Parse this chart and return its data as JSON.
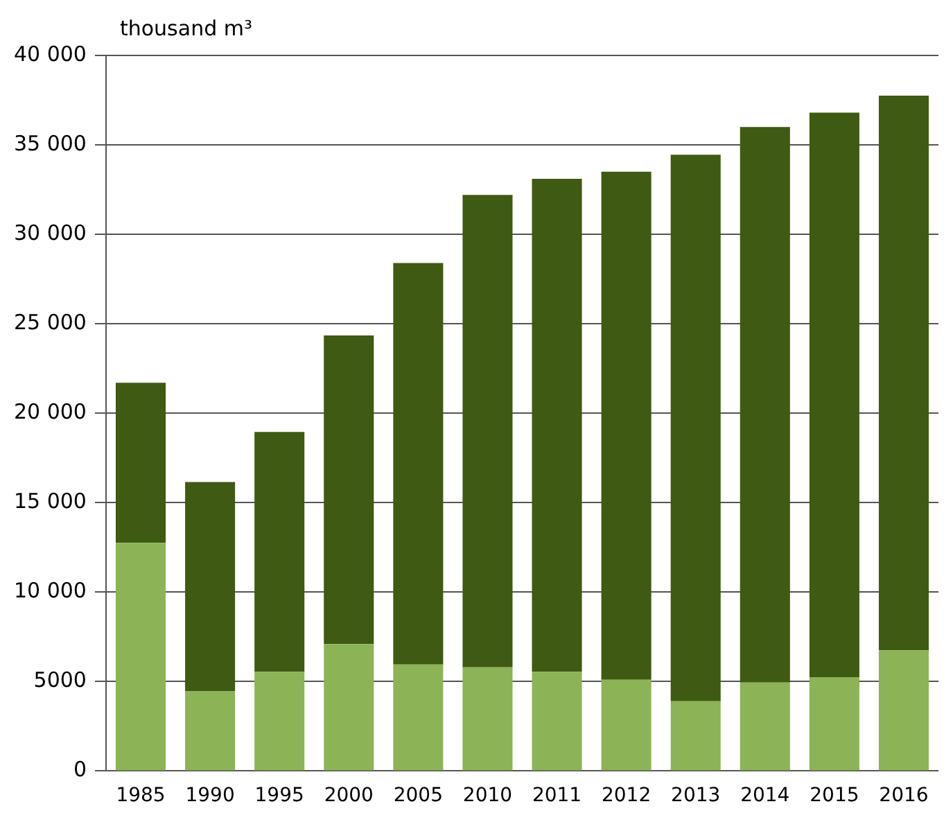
{
  "chart_data": {
    "type": "bar",
    "ylabel": "thousand m³",
    "stacked": true,
    "grid": "y",
    "legend": false,
    "categories": [
      "1985",
      "1990",
      "1995",
      "2000",
      "2005",
      "2010",
      "2011",
      "2012",
      "2013",
      "2014",
      "2015",
      "2016"
    ],
    "series": [
      {
        "color": "#8cb356",
        "values": [
          12750,
          4450,
          5550,
          7100,
          5950,
          5800,
          5550,
          5100,
          3900,
          4950,
          5250,
          6750
        ]
      },
      {
        "color": "#3e5a13",
        "values": [
          8950,
          11700,
          13400,
          17250,
          22450,
          26400,
          27550,
          28400,
          30550,
          31050,
          31550,
          31000
        ]
      }
    ],
    "ylim": [
      0,
      40000
    ],
    "yticks": [
      0,
      5000,
      {
        "value": 10000,
        "label": "10 000"
      },
      {
        "value": 15000,
        "label": "15 000"
      },
      {
        "value": 20000,
        "label": "20 000"
      },
      {
        "value": 25000,
        "label": "25 000"
      },
      {
        "value": 30000,
        "label": "30 000"
      },
      {
        "value": 35000,
        "label": "35 000"
      },
      {
        "value": 40000,
        "label": "40 000"
      }
    ]
  }
}
